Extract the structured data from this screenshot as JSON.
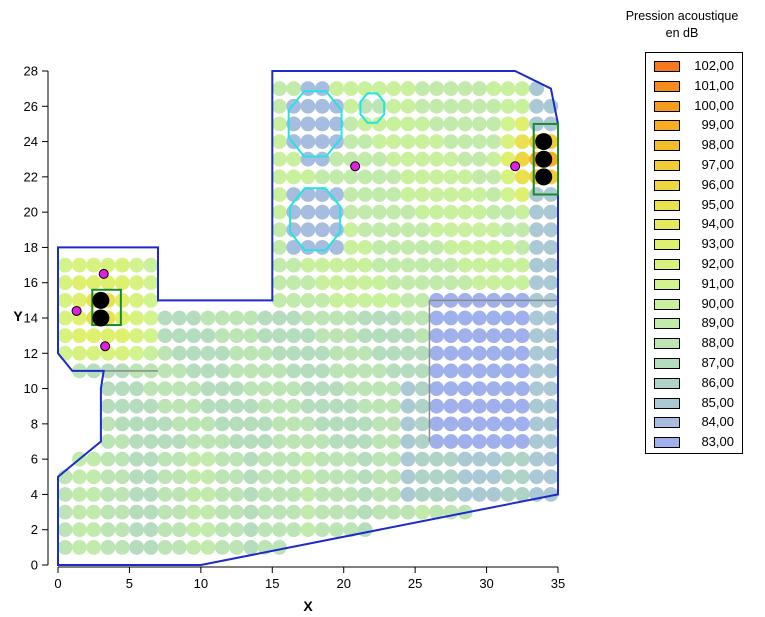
{
  "legend": {
    "title_line1": "Pression acoustique",
    "title_line2": "en dB",
    "entries": [
      {
        "label": "102,00",
        "color": "#f4791f"
      },
      {
        "label": "101,00",
        "color": "#f68c1d"
      },
      {
        "label": "100,00",
        "color": "#f59b1e"
      },
      {
        "label": "99,00",
        "color": "#f7ad22"
      },
      {
        "label": "98,00",
        "color": "#f6bd2a"
      },
      {
        "label": "97,00",
        "color": "#f2cb35"
      },
      {
        "label": "96,00",
        "color": "#eed641"
      },
      {
        "label": "95,00",
        "color": "#eae14e"
      },
      {
        "label": "94,00",
        "color": "#e4ea5c"
      },
      {
        "label": "93,00",
        "color": "#def06d"
      },
      {
        "label": "92,00",
        "color": "#d8f27f"
      },
      {
        "label": "91,00",
        "color": "#d1f48e"
      },
      {
        "label": "90,00",
        "color": "#c9f09c"
      },
      {
        "label": "89,00",
        "color": "#c2ebab"
      },
      {
        "label": "88,00",
        "color": "#bce4b4"
      },
      {
        "label": "87,00",
        "color": "#b6dcbe"
      },
      {
        "label": "86,00",
        "color": "#b0d3c8"
      },
      {
        "label": "85,00",
        "color": "#abc9d4"
      },
      {
        "label": "84,00",
        "color": "#a6bde0"
      },
      {
        "label": "83,00",
        "color": "#9fb0ec"
      }
    ]
  },
  "chart_data": {
    "type": "heatmap",
    "xlabel": "X",
    "ylabel": "Y",
    "xlim": [
      0,
      35
    ],
    "ylim": [
      0,
      28
    ],
    "xticks": [
      0,
      5,
      10,
      15,
      20,
      25,
      30,
      35
    ],
    "yticks": [
      0,
      2,
      4,
      6,
      8,
      10,
      12,
      14,
      16,
      18,
      20,
      22,
      24,
      26,
      28
    ],
    "colors": {
      "boundary": "#1c2bc9",
      "zone": "#1b8a2a",
      "cyan": "#26e3e3",
      "marker": "#e020e0",
      "source": "#000000",
      "grid_line": "#8a8a8a"
    },
    "boundary": [
      [
        0,
        1
      ],
      [
        0,
        5
      ],
      [
        1.5,
        6
      ],
      [
        3,
        7
      ],
      [
        3,
        10
      ],
      [
        3.2,
        11
      ],
      [
        1,
        11
      ],
      [
        0,
        12
      ],
      [
        0,
        18
      ],
      [
        7,
        18
      ],
      [
        7,
        15
      ],
      [
        15,
        15
      ],
      [
        15,
        28
      ],
      [
        32,
        28
      ],
      [
        34.5,
        27
      ],
      [
        35,
        25
      ],
      [
        35,
        4
      ],
      [
        10,
        0
      ],
      [
        0,
        0
      ]
    ],
    "hotspot_zones": [
      {
        "x0": 2.4,
        "y0": 13.6,
        "x1": 4.4,
        "y1": 15.6
      },
      {
        "x0": 33.3,
        "y0": 21.0,
        "x1": 35.0,
        "y1": 25.0
      }
    ],
    "sources": [
      [
        3,
        15
      ],
      [
        3,
        14
      ],
      [
        34,
        24
      ],
      [
        34,
        23
      ],
      [
        34,
        22
      ]
    ],
    "receivers": [
      [
        3.2,
        16.5
      ],
      [
        1.3,
        14.4
      ],
      [
        3.3,
        12.4
      ],
      [
        20.8,
        22.6
      ],
      [
        32,
        22.6
      ]
    ],
    "cyan_regions": [
      {
        "cx": 18.0,
        "cy": 25.0,
        "rx": 2.0,
        "ry": 2.0
      },
      {
        "cx": 22.0,
        "cy": 25.9,
        "rx": 0.9,
        "ry": 0.9
      },
      {
        "cx": 18.0,
        "cy": 19.6,
        "rx": 1.9,
        "ry": 1.9
      }
    ],
    "lines": [
      [
        [
          2.5,
          11
        ],
        [
          7,
          11
        ]
      ],
      [
        [
          26,
          15
        ],
        [
          35,
          15
        ]
      ],
      [
        [
          26,
          15
        ],
        [
          26,
          7
        ]
      ]
    ]
  }
}
